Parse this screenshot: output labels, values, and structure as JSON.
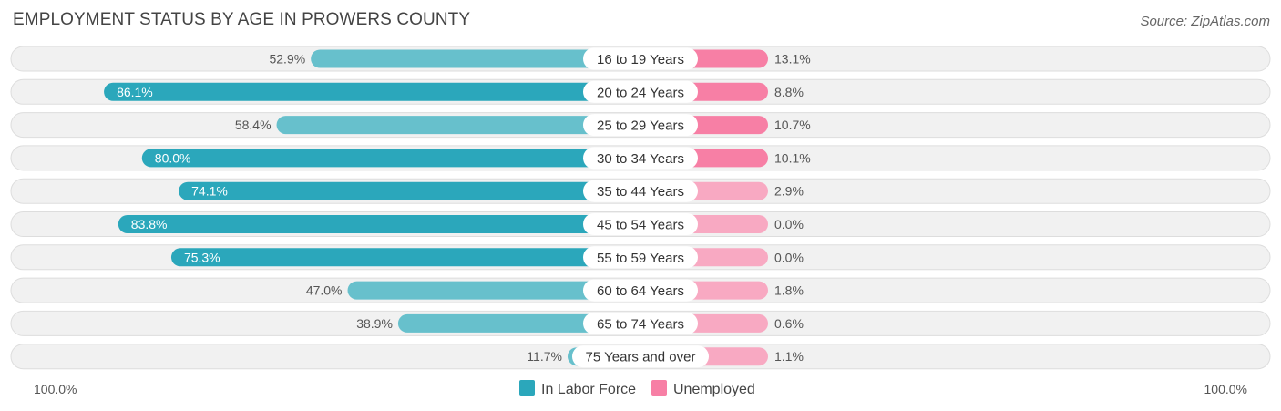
{
  "title": "EMPLOYMENT STATUS BY AGE IN PROWERS COUNTY",
  "source": "Source: ZipAtlas.com",
  "chart_data": {
    "type": "bar",
    "orientation": "horizontal-diverging",
    "title": "EMPLOYMENT STATUS BY AGE IN PROWERS COUNTY",
    "categories": [
      "16 to 19 Years",
      "20 to 24 Years",
      "25 to 29 Years",
      "30 to 34 Years",
      "35 to 44 Years",
      "45 to 54 Years",
      "55 to 59 Years",
      "60 to 64 Years",
      "65 to 74 Years",
      "75 Years and over"
    ],
    "series": [
      {
        "name": "In Labor Force",
        "values": [
          52.9,
          86.1,
          58.4,
          80.0,
          74.1,
          83.8,
          75.3,
          47.0,
          38.9,
          11.7
        ],
        "labels": [
          "52.9%",
          "86.1%",
          "58.4%",
          "80.0%",
          "74.1%",
          "83.8%",
          "75.3%",
          "47.0%",
          "38.9%",
          "11.7%"
        ]
      },
      {
        "name": "Unemployed",
        "values": [
          13.1,
          8.8,
          10.7,
          10.1,
          2.9,
          0.0,
          0.0,
          1.8,
          0.6,
          1.1
        ],
        "labels": [
          "13.1%",
          "8.8%",
          "10.7%",
          "10.1%",
          "2.9%",
          "0.0%",
          "0.0%",
          "1.8%",
          "0.6%",
          "1.1%"
        ]
      }
    ],
    "axis": {
      "left_label": "100.0%",
      "right_label": "100.0%",
      "range": [
        -100,
        100
      ]
    },
    "legend": {
      "position": "bottom-center",
      "items": [
        "In Labor Force",
        "Unemployed"
      ]
    }
  },
  "colors": {
    "labor_strong": "#2ba7bb",
    "labor_light": "#67c0cc",
    "unemp_strong": "#f77fa5",
    "unemp_light": "#f8a9c2"
  }
}
